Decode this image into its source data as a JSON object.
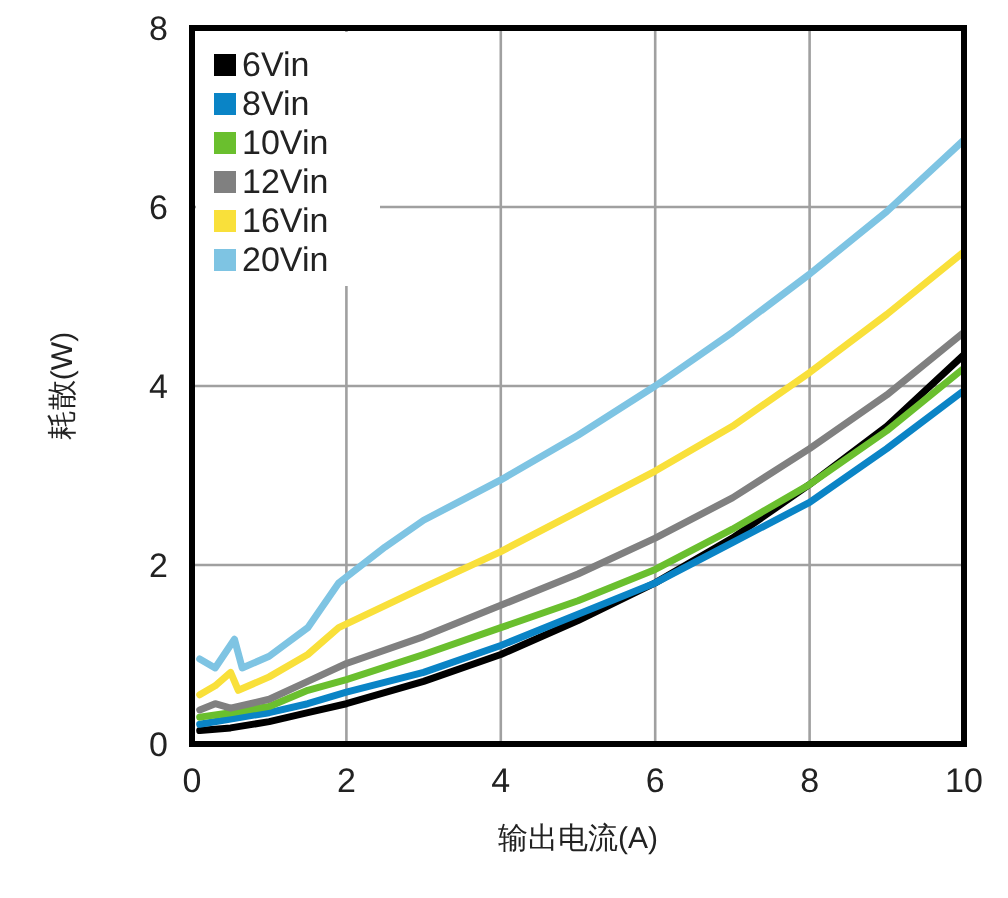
{
  "chart_data": {
    "type": "line",
    "xlabel": "输出电流(A)",
    "ylabel": "耗散(W)",
    "xlim": [
      0,
      10
    ],
    "ylim": [
      0,
      8
    ],
    "xticks": [
      0,
      2,
      4,
      6,
      8,
      10
    ],
    "yticks": [
      0,
      2,
      4,
      6,
      8
    ],
    "grid": true,
    "legend": "top left",
    "line_style": "solid",
    "marker": "none",
    "series": [
      {
        "name": "6Vin",
        "color": "#000000",
        "x": [
          0.1,
          0.5,
          1,
          1.5,
          2,
          3,
          4,
          5,
          6,
          7,
          8,
          9,
          10
        ],
        "values": [
          0.15,
          0.18,
          0.25,
          0.35,
          0.45,
          0.7,
          1.0,
          1.38,
          1.8,
          2.3,
          2.9,
          3.55,
          4.35
        ]
      },
      {
        "name": "8Vin",
        "color": "#0a84c6",
        "x": [
          0.1,
          0.5,
          1,
          1.5,
          2,
          3,
          4,
          5,
          6,
          7,
          8,
          9,
          10
        ],
        "values": [
          0.22,
          0.28,
          0.35,
          0.45,
          0.58,
          0.8,
          1.1,
          1.45,
          1.8,
          2.25,
          2.7,
          3.3,
          3.95
        ]
      },
      {
        "name": "10Vin",
        "color": "#6abf2e",
        "x": [
          0.1,
          0.5,
          1,
          1.5,
          2,
          3,
          4,
          5,
          6,
          7,
          8,
          9,
          10
        ],
        "values": [
          0.3,
          0.35,
          0.42,
          0.6,
          0.72,
          1.0,
          1.3,
          1.6,
          1.95,
          2.4,
          2.9,
          3.5,
          4.2
        ]
      },
      {
        "name": "12Vin",
        "color": "#808080",
        "x": [
          0.1,
          0.3,
          0.5,
          1,
          1.5,
          2,
          3,
          4,
          5,
          6,
          7,
          8,
          9,
          10
        ],
        "values": [
          0.38,
          0.45,
          0.4,
          0.5,
          0.7,
          0.9,
          1.2,
          1.55,
          1.9,
          2.3,
          2.75,
          3.3,
          3.9,
          4.6
        ]
      },
      {
        "name": "16Vin",
        "color": "#f9e03a",
        "x": [
          0.1,
          0.3,
          0.5,
          0.6,
          1,
          1.5,
          1.9,
          3,
          4,
          5,
          6,
          7,
          8,
          9,
          10
        ],
        "values": [
          0.55,
          0.65,
          0.8,
          0.6,
          0.75,
          1.0,
          1.3,
          1.75,
          2.15,
          2.6,
          3.05,
          3.55,
          4.15,
          4.8,
          5.5
        ]
      },
      {
        "name": "20Vin",
        "color": "#7ec4e3",
        "x": [
          0.1,
          0.3,
          0.55,
          0.65,
          1,
          1.5,
          1.9,
          2.5,
          3,
          4,
          5,
          6,
          7,
          8,
          9,
          10
        ],
        "values": [
          0.95,
          0.85,
          1.17,
          0.85,
          0.98,
          1.3,
          1.8,
          2.2,
          2.5,
          2.95,
          3.45,
          4.0,
          4.6,
          5.25,
          5.95,
          6.75
        ]
      }
    ]
  }
}
